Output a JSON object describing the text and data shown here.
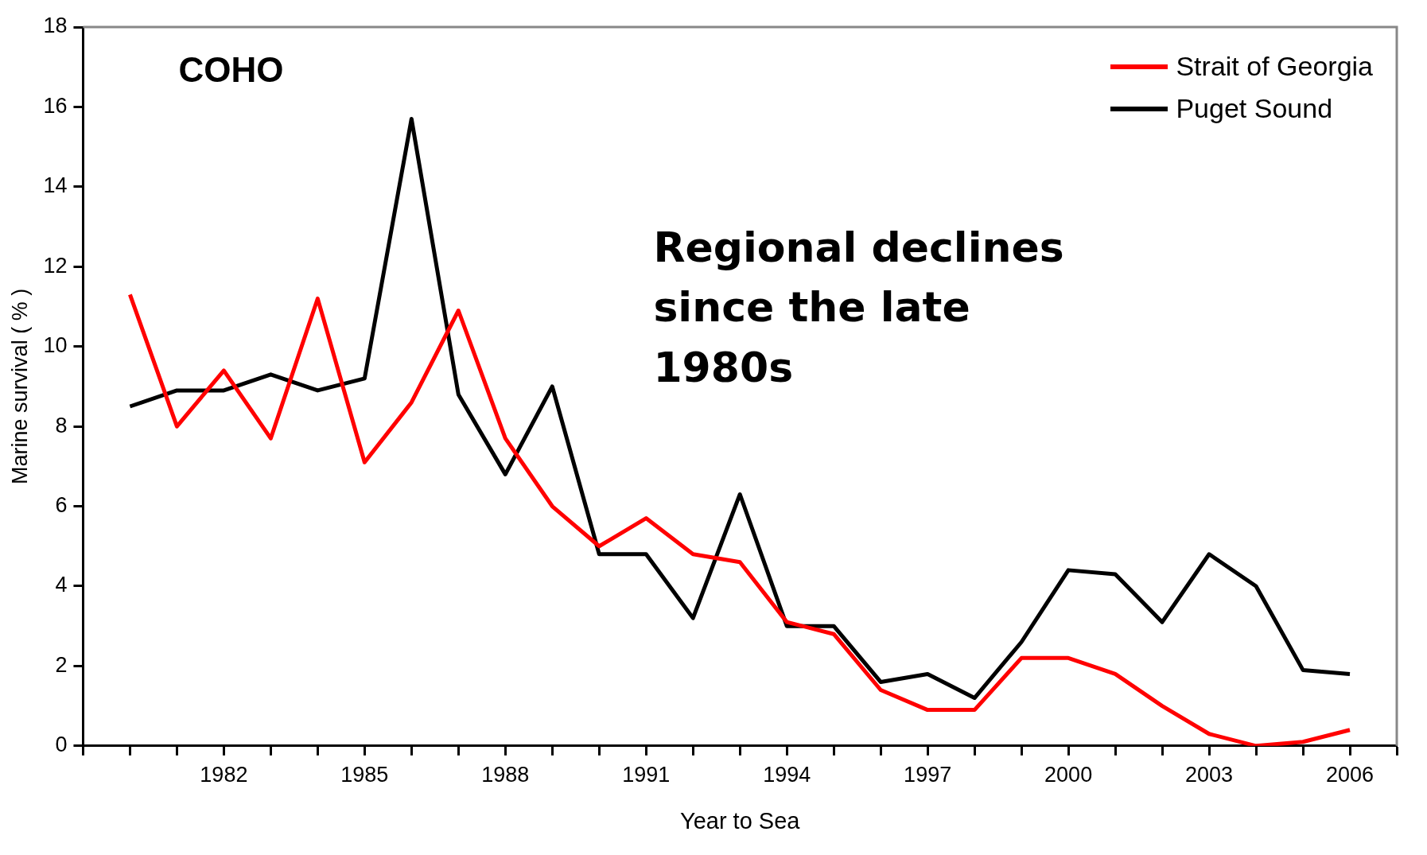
{
  "chart_data": {
    "type": "line",
    "xlabel": "Year to Sea",
    "ylabel": "Marine survival ( % )",
    "annotations": [
      "COHO",
      "Regional declines since the late 1980s"
    ],
    "x": [
      1980,
      1981,
      1982,
      1983,
      1984,
      1985,
      1986,
      1987,
      1988,
      1989,
      1990,
      1991,
      1992,
      1993,
      1994,
      1995,
      1996,
      1997,
      1998,
      1999,
      2000,
      2001,
      2002,
      2003,
      2004,
      2005,
      2006
    ],
    "series": [
      {
        "name": "Strait of Georgia",
        "color": "#ff0000",
        "values": [
          11.3,
          8.0,
          9.4,
          7.7,
          11.2,
          7.1,
          8.6,
          10.9,
          7.7,
          6.0,
          5.0,
          5.7,
          4.8,
          4.6,
          3.1,
          2.8,
          1.4,
          0.9,
          0.9,
          2.2,
          2.2,
          1.8,
          1.0,
          0.3,
          0.0,
          0.1,
          0.4
        ]
      },
      {
        "name": "Puget Sound",
        "color": "#000000",
        "values": [
          8.5,
          8.9,
          8.9,
          9.3,
          8.9,
          9.2,
          15.7,
          8.8,
          6.8,
          9.0,
          4.8,
          4.8,
          3.2,
          6.3,
          3.0,
          3.0,
          1.6,
          1.8,
          1.2,
          2.6,
          4.4,
          4.3,
          3.1,
          4.8,
          4.0,
          1.9,
          1.8
        ]
      }
    ],
    "xlim": [
      1979,
      2007
    ],
    "xticks": [
      {
        "value": 1979,
        "label": null
      },
      {
        "value": 1980,
        "label": null
      },
      {
        "value": 1981,
        "label": null
      },
      1982,
      {
        "value": 1983,
        "label": null
      },
      {
        "value": 1984,
        "label": null
      },
      1985,
      {
        "value": 1986,
        "label": null
      },
      {
        "value": 1987,
        "label": null
      },
      1988,
      {
        "value": 1989,
        "label": null
      },
      {
        "value": 1990,
        "label": null
      },
      1991,
      {
        "value": 1992,
        "label": null
      },
      {
        "value": 1993,
        "label": null
      },
      1994,
      {
        "value": 1995,
        "label": null
      },
      {
        "value": 1996,
        "label": null
      },
      1997,
      {
        "value": 1998,
        "label": null
      },
      {
        "value": 1999,
        "label": null
      },
      2000,
      {
        "value": 2001,
        "label": null
      },
      {
        "value": 2002,
        "label": null
      },
      2003,
      {
        "value": 2004,
        "label": null
      },
      {
        "value": 2005,
        "label": null
      },
      2006,
      {
        "value": 2007,
        "label": null
      }
    ],
    "ylim": [
      0,
      18
    ],
    "yticks": [
      0,
      2,
      4,
      6,
      8,
      10,
      12,
      14,
      16,
      18
    ],
    "grid": false,
    "legend": "top right",
    "marker": "none",
    "line_style": "solid"
  }
}
